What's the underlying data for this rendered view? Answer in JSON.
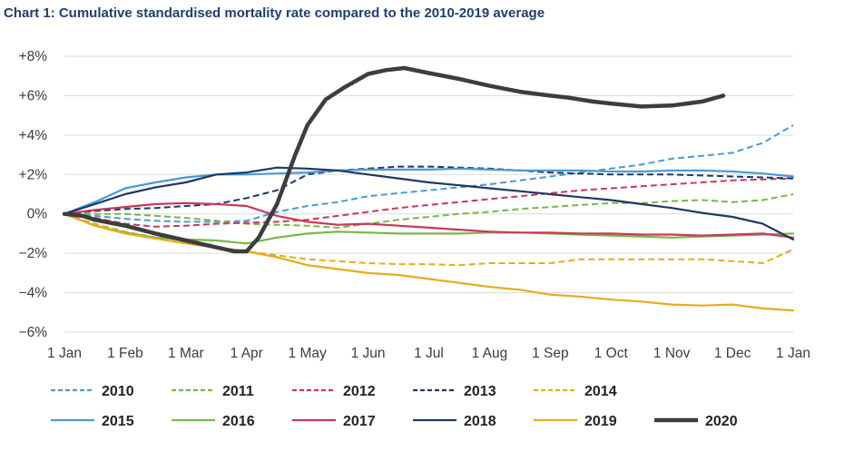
{
  "chart_data": {
    "type": "line",
    "title": "Chart 1: Cumulative standardised mortality rate compared to the 2010-2019 average",
    "xlabel": "",
    "ylabel": "",
    "ylim": [
      -6,
      8
    ],
    "xlim": [
      0,
      12
    ],
    "grid": "horizontal",
    "legend_position": "bottom",
    "y_ticks": [
      {
        "value": 8,
        "label": "+8%"
      },
      {
        "value": 6,
        "label": "+6%"
      },
      {
        "value": 4,
        "label": "+4%"
      },
      {
        "value": 2,
        "label": "+2%"
      },
      {
        "value": 0,
        "label": "0%"
      },
      {
        "value": -2,
        "label": "−2%"
      },
      {
        "value": -4,
        "label": "−4%"
      },
      {
        "value": -6,
        "label": "−6%"
      }
    ],
    "x_ticks": [
      "1 Jan",
      "1 Feb",
      "1 Mar",
      "1 Apr",
      "1 May",
      "1 Jun",
      "1 Jul",
      "1 Aug",
      "1 Sep",
      "1 Oct",
      "1 Nov",
      "1 Dec",
      "1 Jan"
    ],
    "series": [
      {
        "name": "2010",
        "color": "#4a9ad4",
        "dash": "dashed",
        "width": 2,
        "points": [
          [
            0,
            0
          ],
          [
            0.5,
            -0.1
          ],
          [
            1,
            -0.25
          ],
          [
            1.5,
            -0.35
          ],
          [
            2,
            -0.4
          ],
          [
            2.5,
            -0.4
          ],
          [
            3,
            -0.35
          ],
          [
            3.5,
            0.1
          ],
          [
            4,
            0.4
          ],
          [
            4.5,
            0.6
          ],
          [
            5,
            0.9
          ],
          [
            5.5,
            1.05
          ],
          [
            6,
            1.2
          ],
          [
            6.5,
            1.35
          ],
          [
            7,
            1.5
          ],
          [
            7.5,
            1.7
          ],
          [
            8,
            1.9
          ],
          [
            8.5,
            2.1
          ],
          [
            9,
            2.3
          ],
          [
            9.5,
            2.5
          ],
          [
            10,
            2.8
          ],
          [
            10.5,
            2.95
          ],
          [
            11,
            3.1
          ],
          [
            11.5,
            3.6
          ],
          [
            12,
            4.5
          ]
        ]
      },
      {
        "name": "2011",
        "color": "#7ab648",
        "dash": "dashed",
        "width": 2,
        "points": [
          [
            0,
            0
          ],
          [
            0.5,
            0
          ],
          [
            1,
            0
          ],
          [
            1.5,
            -0.1
          ],
          [
            2,
            -0.2
          ],
          [
            2.5,
            -0.35
          ],
          [
            3,
            -0.5
          ],
          [
            3.5,
            -0.55
          ],
          [
            4,
            -0.6
          ],
          [
            4.5,
            -0.7
          ],
          [
            5,
            -0.5
          ],
          [
            5.5,
            -0.3
          ],
          [
            6,
            -0.15
          ],
          [
            6.5,
            0
          ],
          [
            7,
            0.1
          ],
          [
            7.5,
            0.25
          ],
          [
            8,
            0.35
          ],
          [
            8.5,
            0.45
          ],
          [
            9,
            0.55
          ],
          [
            9.5,
            0.55
          ],
          [
            10,
            0.65
          ],
          [
            10.5,
            0.7
          ],
          [
            11,
            0.6
          ],
          [
            11.5,
            0.7
          ],
          [
            12,
            1.0
          ]
        ]
      },
      {
        "name": "2012",
        "color": "#c9385a",
        "dash": "dashed",
        "width": 2,
        "points": [
          [
            0,
            0
          ],
          [
            0.5,
            -0.2
          ],
          [
            1,
            -0.5
          ],
          [
            1.5,
            -0.65
          ],
          [
            2,
            -0.6
          ],
          [
            2.5,
            -0.5
          ],
          [
            3,
            -0.45
          ],
          [
            3.5,
            -0.4
          ],
          [
            4,
            -0.3
          ],
          [
            4.5,
            -0.1
          ],
          [
            5,
            0.1
          ],
          [
            5.5,
            0.3
          ],
          [
            6,
            0.45
          ],
          [
            6.5,
            0.6
          ],
          [
            7,
            0.75
          ],
          [
            7.5,
            0.9
          ],
          [
            8,
            1.05
          ],
          [
            8.5,
            1.2
          ],
          [
            9,
            1.3
          ],
          [
            9.5,
            1.4
          ],
          [
            10,
            1.5
          ],
          [
            10.5,
            1.6
          ],
          [
            11,
            1.7
          ],
          [
            11.5,
            1.75
          ],
          [
            12,
            1.8
          ]
        ]
      },
      {
        "name": "2013",
        "color": "#1f3864",
        "dash": "dashed",
        "width": 2,
        "points": [
          [
            0,
            0
          ],
          [
            0.5,
            0.15
          ],
          [
            1,
            0.25
          ],
          [
            1.5,
            0.3
          ],
          [
            2,
            0.4
          ],
          [
            2.5,
            0.5
          ],
          [
            3,
            0.8
          ],
          [
            3.5,
            1.2
          ],
          [
            4,
            2.0
          ],
          [
            4.5,
            2.2
          ],
          [
            5,
            2.3
          ],
          [
            5.5,
            2.4
          ],
          [
            6,
            2.4
          ],
          [
            6.5,
            2.35
          ],
          [
            7,
            2.3
          ],
          [
            7.5,
            2.2
          ],
          [
            8,
            2.1
          ],
          [
            8.5,
            2.05
          ],
          [
            9,
            2.0
          ],
          [
            9.5,
            2.0
          ],
          [
            10,
            2.0
          ],
          [
            10.5,
            1.95
          ],
          [
            11,
            1.9
          ],
          [
            11.5,
            1.85
          ],
          [
            12,
            1.8
          ]
        ]
      },
      {
        "name": "2014",
        "color": "#e6ac1f",
        "dash": "dashed",
        "width": 2,
        "points": [
          [
            0,
            0
          ],
          [
            0.5,
            -0.5
          ],
          [
            1,
            -0.9
          ],
          [
            1.5,
            -1.2
          ],
          [
            2,
            -1.5
          ],
          [
            2.5,
            -1.7
          ],
          [
            3,
            -1.9
          ],
          [
            3.5,
            -2.1
          ],
          [
            4,
            -2.3
          ],
          [
            4.5,
            -2.4
          ],
          [
            5,
            -2.5
          ],
          [
            5.5,
            -2.55
          ],
          [
            6,
            -2.55
          ],
          [
            6.5,
            -2.6
          ],
          [
            7,
            -2.5
          ],
          [
            7.5,
            -2.5
          ],
          [
            8,
            -2.5
          ],
          [
            8.5,
            -2.3
          ],
          [
            9,
            -2.3
          ],
          [
            9.5,
            -2.3
          ],
          [
            10,
            -2.3
          ],
          [
            10.5,
            -2.3
          ],
          [
            11,
            -2.4
          ],
          [
            11.5,
            -2.5
          ],
          [
            12,
            -1.8
          ]
        ]
      },
      {
        "name": "2015",
        "color": "#4a9ad4",
        "dash": "solid",
        "width": 2.2,
        "points": [
          [
            0,
            0
          ],
          [
            0.5,
            0.6
          ],
          [
            1,
            1.3
          ],
          [
            1.5,
            1.6
          ],
          [
            2,
            1.85
          ],
          [
            2.5,
            2.0
          ],
          [
            3,
            2.0
          ],
          [
            3.5,
            2.05
          ],
          [
            4,
            2.1
          ],
          [
            4.5,
            2.2
          ],
          [
            5,
            2.25
          ],
          [
            5.5,
            2.25
          ],
          [
            6,
            2.25
          ],
          [
            6.5,
            2.3
          ],
          [
            7,
            2.25
          ],
          [
            7.5,
            2.2
          ],
          [
            8,
            2.2
          ],
          [
            8.5,
            2.2
          ],
          [
            9,
            2.15
          ],
          [
            9.5,
            2.15
          ],
          [
            10,
            2.2
          ],
          [
            10.5,
            2.2
          ],
          [
            11,
            2.15
          ],
          [
            11.5,
            2.05
          ],
          [
            12,
            1.9
          ]
        ]
      },
      {
        "name": "2016",
        "color": "#7ab648",
        "dash": "solid",
        "width": 2.2,
        "points": [
          [
            0,
            0
          ],
          [
            0.5,
            -0.6
          ],
          [
            1,
            -0.95
          ],
          [
            1.5,
            -1.2
          ],
          [
            2,
            -1.3
          ],
          [
            2.5,
            -1.35
          ],
          [
            3,
            -1.5
          ],
          [
            3.5,
            -1.2
          ],
          [
            4,
            -1.0
          ],
          [
            4.5,
            -0.9
          ],
          [
            5,
            -0.95
          ],
          [
            5.5,
            -1.0
          ],
          [
            6,
            -1.0
          ],
          [
            6.5,
            -1.0
          ],
          [
            7,
            -0.95
          ],
          [
            7.5,
            -0.95
          ],
          [
            8,
            -1.0
          ],
          [
            8.5,
            -1.05
          ],
          [
            9,
            -1.1
          ],
          [
            9.5,
            -1.15
          ],
          [
            10,
            -1.2
          ],
          [
            10.5,
            -1.15
          ],
          [
            11,
            -1.1
          ],
          [
            11.5,
            -1.05
          ],
          [
            12,
            -1.0
          ]
        ]
      },
      {
        "name": "2017",
        "color": "#c9385a",
        "dash": "solid",
        "width": 2.2,
        "points": [
          [
            0,
            0
          ],
          [
            0.5,
            0.2
          ],
          [
            1,
            0.35
          ],
          [
            1.5,
            0.5
          ],
          [
            2,
            0.55
          ],
          [
            2.5,
            0.5
          ],
          [
            3,
            0.4
          ],
          [
            3.5,
            -0.1
          ],
          [
            4,
            -0.4
          ],
          [
            4.5,
            -0.55
          ],
          [
            5,
            -0.5
          ],
          [
            5.5,
            -0.6
          ],
          [
            6,
            -0.7
          ],
          [
            6.5,
            -0.8
          ],
          [
            7,
            -0.9
          ],
          [
            7.5,
            -0.95
          ],
          [
            8,
            -0.95
          ],
          [
            8.5,
            -1.0
          ],
          [
            9,
            -1.0
          ],
          [
            9.5,
            -1.05
          ],
          [
            10,
            -1.05
          ],
          [
            10.5,
            -1.1
          ],
          [
            11,
            -1.05
          ],
          [
            11.5,
            -1.0
          ],
          [
            12,
            -1.2
          ]
        ]
      },
      {
        "name": "2018",
        "color": "#1f3864",
        "dash": "solid",
        "width": 2.2,
        "points": [
          [
            0,
            0
          ],
          [
            0.5,
            0.5
          ],
          [
            1,
            1.0
          ],
          [
            1.5,
            1.35
          ],
          [
            2,
            1.6
          ],
          [
            2.5,
            2.0
          ],
          [
            3,
            2.1
          ],
          [
            3.5,
            2.35
          ],
          [
            4,
            2.3
          ],
          [
            4.5,
            2.2
          ],
          [
            5,
            2.0
          ],
          [
            5.5,
            1.8
          ],
          [
            6,
            1.6
          ],
          [
            6.5,
            1.45
          ],
          [
            7,
            1.3
          ],
          [
            7.5,
            1.15
          ],
          [
            8,
            1.0
          ],
          [
            8.5,
            0.85
          ],
          [
            9,
            0.7
          ],
          [
            9.5,
            0.5
          ],
          [
            10,
            0.3
          ],
          [
            10.5,
            0.05
          ],
          [
            11,
            -0.15
          ],
          [
            11.5,
            -0.5
          ],
          [
            12,
            -1.3
          ]
        ]
      },
      {
        "name": "2019",
        "color": "#e6ac1f",
        "dash": "solid",
        "width": 2.2,
        "points": [
          [
            0,
            0
          ],
          [
            0.5,
            -0.6
          ],
          [
            1,
            -1.0
          ],
          [
            1.5,
            -1.25
          ],
          [
            2,
            -1.5
          ],
          [
            2.5,
            -1.7
          ],
          [
            3,
            -1.9
          ],
          [
            3.5,
            -2.2
          ],
          [
            4,
            -2.6
          ],
          [
            4.5,
            -2.8
          ],
          [
            5,
            -3.0
          ],
          [
            5.5,
            -3.1
          ],
          [
            6,
            -3.3
          ],
          [
            6.5,
            -3.5
          ],
          [
            7,
            -3.7
          ],
          [
            7.5,
            -3.85
          ],
          [
            8,
            -4.1
          ],
          [
            8.5,
            -4.2
          ],
          [
            9,
            -4.35
          ],
          [
            9.5,
            -4.45
          ],
          [
            10,
            -4.6
          ],
          [
            10.5,
            -4.65
          ],
          [
            11,
            -4.6
          ],
          [
            11.5,
            -4.8
          ],
          [
            12,
            -4.9
          ]
        ]
      },
      {
        "name": "2020",
        "color": "#3d3d3d",
        "dash": "solid",
        "width": 4.5,
        "points": [
          [
            0,
            0
          ],
          [
            0.3,
            -0.1
          ],
          [
            0.5,
            -0.3
          ],
          [
            1,
            -0.6
          ],
          [
            1.5,
            -1.0
          ],
          [
            2,
            -1.35
          ],
          [
            2.5,
            -1.7
          ],
          [
            2.8,
            -1.9
          ],
          [
            3,
            -1.9
          ],
          [
            3.2,
            -1.2
          ],
          [
            3.5,
            0.5
          ],
          [
            3.8,
            3.0
          ],
          [
            4,
            4.5
          ],
          [
            4.3,
            5.8
          ],
          [
            4.6,
            6.4
          ],
          [
            5,
            7.1
          ],
          [
            5.3,
            7.3
          ],
          [
            5.6,
            7.4
          ],
          [
            6,
            7.15
          ],
          [
            6.5,
            6.85
          ],
          [
            7,
            6.5
          ],
          [
            7.5,
            6.2
          ],
          [
            8,
            6.0
          ],
          [
            8.3,
            5.9
          ],
          [
            8.7,
            5.7
          ],
          [
            9,
            5.6
          ],
          [
            9.5,
            5.45
          ],
          [
            10,
            5.5
          ],
          [
            10.5,
            5.7
          ],
          [
            10.85,
            6.0
          ]
        ]
      }
    ]
  }
}
